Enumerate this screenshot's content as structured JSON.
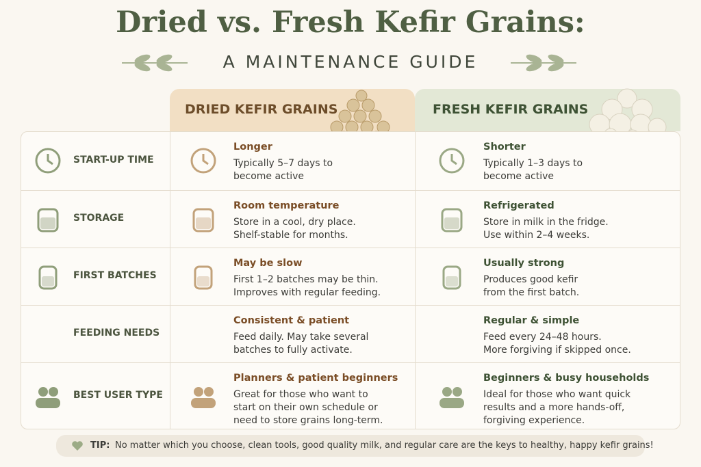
{
  "header": {
    "title": "Dried vs. Fresh Kefir Grains:",
    "subtitle": "A MAINTENANCE GUIDE"
  },
  "table": {
    "columns": [
      "DRIED KEFIR GRAINS",
      "FRESH KEFIR GRAINS"
    ],
    "rows": [
      {
        "label": "START-UP TIME",
        "dried": {
          "heading": "Longer",
          "text": [
            "Typically 5–7 days to",
            "become active"
          ]
        },
        "fresh": {
          "heading": "Shorter",
          "text": [
            "Typically 1–3 days to",
            "become active"
          ]
        }
      },
      {
        "label": "STORAGE",
        "dried": {
          "heading": "Room temperature",
          "text": [
            "Store in a cool, dry place.",
            "Shelf-stable for months."
          ]
        },
        "fresh": {
          "heading": "Refrigerated",
          "text": [
            "Store in milk in the fridge.",
            "Use within 2–4 weeks."
          ]
        }
      },
      {
        "label": "FIRST BATCHES",
        "dried": {
          "heading": "May be slow",
          "text": [
            "First 1–2 batches may be thin.",
            "Improves with regular feeding."
          ]
        },
        "fresh": {
          "heading": "Usually strong",
          "text": [
            "Produces good kefir",
            "from the first batch."
          ]
        }
      },
      {
        "label": "FEEDING NEEDS",
        "dried": {
          "heading": "Consistent & patient",
          "text": [
            "Feed daily. May take several",
            "batches to fully activate."
          ]
        },
        "fresh": {
          "heading": "Regular & simple",
          "text": [
            "Feed every 24–48 hours.",
            "More forgiving if skipped once."
          ]
        }
      },
      {
        "label": "BEST USER TYPE",
        "dried": {
          "heading": "Planners & patient beginners",
          "text": [
            "Great for those who want to",
            "start on their own schedule or",
            "need to store grains long-term."
          ]
        },
        "fresh": {
          "heading": "Beginners & busy households",
          "text": [
            "Ideal for those who want quick",
            "results and a more hands-off,",
            "forgiving experience."
          ]
        }
      }
    ]
  },
  "tip": {
    "label": "TIP:",
    "text": "No matter which you choose, clean tools, good quality milk, and regular care are the keys to healthy, happy kefir grains!"
  }
}
